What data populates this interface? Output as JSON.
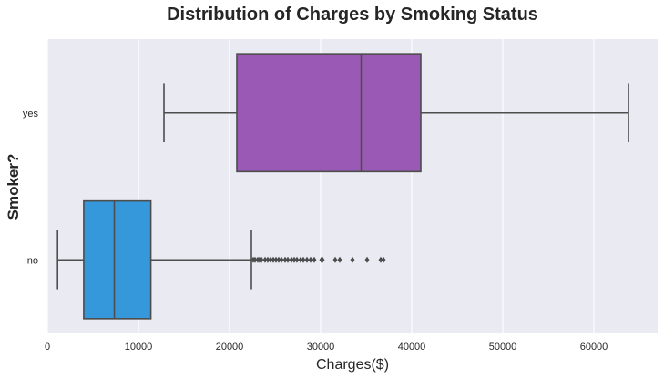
{
  "chart_data": {
    "type": "boxplot",
    "title": "Distribution of Charges by Smoking Status",
    "xlabel": "Charges($)",
    "ylabel": "Smoker?",
    "xlim": [
      0,
      67000
    ],
    "x_ticks": [
      0,
      10000,
      20000,
      30000,
      40000,
      50000,
      60000
    ],
    "x_tick_labels": [
      "0",
      "10000",
      "20000",
      "30000",
      "40000",
      "50000",
      "60000"
    ],
    "grid": "vertical",
    "background_color": "#eaeaf2",
    "categories": [
      "yes",
      "no"
    ],
    "series": [
      {
        "category": "yes",
        "color": "#9b59b6",
        "whisker_low": 12800,
        "q1": 20800,
        "median": 34450,
        "q3": 41000,
        "whisker_high": 63800,
        "outliers": []
      },
      {
        "category": "no",
        "color": "#3498db",
        "whisker_low": 1120,
        "q1": 3990,
        "median": 7350,
        "q3": 11360,
        "whisker_high": 22400,
        "outliers": [
          22600,
          22800,
          23100,
          23300,
          23500,
          23900,
          24200,
          24500,
          24800,
          25100,
          25400,
          25700,
          26100,
          26400,
          26800,
          27100,
          27400,
          27800,
          28100,
          28500,
          28900,
          29300,
          30100,
          30200,
          31600,
          32100,
          33500,
          35100,
          36600,
          36900
        ]
      }
    ]
  }
}
